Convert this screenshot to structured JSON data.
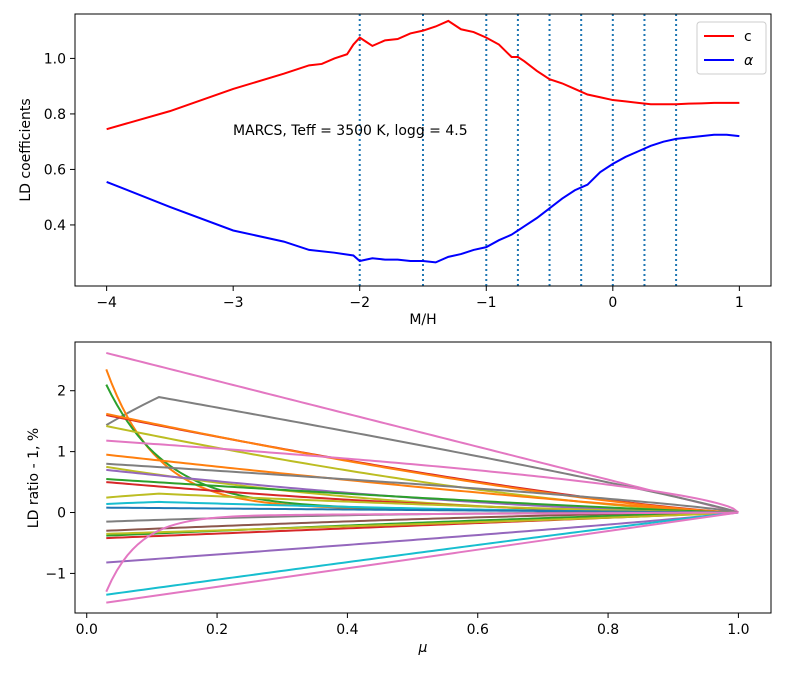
{
  "chart_data": [
    {
      "type": "line",
      "xlabel": "M/H",
      "ylabel": "LD coefficients",
      "xlim": [
        -4.25,
        1.25
      ],
      "ylim": [
        0.18,
        1.16
      ],
      "xticks": [
        -4,
        -3,
        -2,
        -1,
        0,
        1
      ],
      "xtick_labels": [
        "−4",
        "−3",
        "−2",
        "−1",
        "0",
        "1"
      ],
      "yticks": [
        0.4,
        0.6,
        0.8,
        1.0
      ],
      "ytick_labels": [
        "0.4",
        "0.6",
        "0.8",
        "1.0"
      ],
      "annotation": "MARCS, Teff = 3500 K, logg = 4.5",
      "vlines": [
        -2,
        -1.5,
        -1,
        -0.75,
        -0.5,
        -0.25,
        0,
        0.25,
        0.5
      ],
      "vline_color": "#1f77b4",
      "legend_position": "top-right",
      "series": [
        {
          "name": "c",
          "color": "#ff0000",
          "x": [
            -4,
            -3.5,
            -3,
            -2.6,
            -2.4,
            -2.3,
            -2.2,
            -2.1,
            -2.05,
            -2,
            -1.95,
            -1.9,
            -1.85,
            -1.8,
            -1.7,
            -1.6,
            -1.5,
            -1.4,
            -1.3,
            -1.2,
            -1.1,
            -1,
            -0.9,
            -0.8,
            -0.75,
            -0.7,
            -0.6,
            -0.5,
            -0.4,
            -0.3,
            -0.2,
            -0.1,
            0,
            0.1,
            0.2,
            0.3,
            0.4,
            0.5,
            0.6,
            0.7,
            0.8,
            0.9,
            1
          ],
          "y": [
            0.745,
            0.81,
            0.89,
            0.945,
            0.975,
            0.98,
            1.0,
            1.015,
            1.05,
            1.075,
            1.06,
            1.045,
            1.055,
            1.065,
            1.07,
            1.09,
            1.1,
            1.115,
            1.135,
            1.105,
            1.095,
            1.075,
            1.05,
            1.005,
            1.005,
            0.99,
            0.955,
            0.925,
            0.91,
            0.89,
            0.87,
            0.86,
            0.85,
            0.845,
            0.84,
            0.835,
            0.835,
            0.835,
            0.837,
            0.838,
            0.84,
            0.84,
            0.84
          ]
        },
        {
          "name": "α",
          "color": "#0000ff",
          "x": [
            -4,
            -3.5,
            -3,
            -2.6,
            -2.4,
            -2.2,
            -2.05,
            -2,
            -1.95,
            -1.9,
            -1.8,
            -1.7,
            -1.6,
            -1.5,
            -1.4,
            -1.3,
            -1.2,
            -1.1,
            -1,
            -0.9,
            -0.8,
            -0.75,
            -0.7,
            -0.6,
            -0.5,
            -0.4,
            -0.3,
            -0.25,
            -0.2,
            -0.1,
            0,
            0.1,
            0.2,
            0.3,
            0.4,
            0.5,
            0.6,
            0.7,
            0.8,
            0.9,
            1
          ],
          "y": [
            0.555,
            0.465,
            0.38,
            0.34,
            0.31,
            0.3,
            0.29,
            0.27,
            0.275,
            0.28,
            0.275,
            0.275,
            0.27,
            0.27,
            0.265,
            0.285,
            0.295,
            0.31,
            0.32,
            0.345,
            0.365,
            0.38,
            0.395,
            0.425,
            0.46,
            0.495,
            0.525,
            0.535,
            0.545,
            0.59,
            0.62,
            0.645,
            0.665,
            0.685,
            0.7,
            0.71,
            0.715,
            0.72,
            0.725,
            0.725,
            0.72
          ]
        }
      ]
    },
    {
      "type": "line",
      "xlabel": "μ",
      "ylabel": "LD ratio - 1, %",
      "xlim": [
        -0.018,
        1.05
      ],
      "ylim": [
        -1.65,
        2.8
      ],
      "xticks": [
        0,
        0.2,
        0.4,
        0.6,
        0.8,
        1.0
      ],
      "xtick_labels": [
        "0.0",
        "0.2",
        "0.4",
        "0.6",
        "0.8",
        "1.0"
      ],
      "yticks": [
        -1,
        0,
        1,
        2
      ],
      "ytick_labels": [
        "−1",
        "0",
        "1",
        "2"
      ],
      "x_range": [
        0.03,
        1.0
      ],
      "series": [
        {
          "color": "#e377c2",
          "start": 2.62,
          "shape": "decay",
          "k": 1.0
        },
        {
          "color": "#7f7f7f",
          "start": 2.05,
          "shape": "hump",
          "k": 0.9
        },
        {
          "color": "#ff7f0e",
          "start": 2.25,
          "shape": "fast",
          "k": 12
        },
        {
          "color": "#2ca02c",
          "start": 2.0,
          "shape": "fast",
          "k": 10
        },
        {
          "color": "#d62728",
          "start": 1.6,
          "shape": "decay",
          "k": 1.3
        },
        {
          "color": "#ff7f0e",
          "start": 1.62,
          "shape": "decay",
          "k": 1.35
        },
        {
          "color": "#bcbd22",
          "start": 1.42,
          "shape": "decay",
          "k": 1.5
        },
        {
          "color": "#e377c2",
          "start": 1.18,
          "shape": "decay",
          "k": 0.6
        },
        {
          "color": "#ff7f0e",
          "start": 0.95,
          "shape": "decay",
          "k": 1.2
        },
        {
          "color": "#7f7f7f",
          "start": 0.8,
          "shape": "decay",
          "k": 0.8
        },
        {
          "color": "#bcbd22",
          "start": 0.75,
          "shape": "decay",
          "k": 2.2
        },
        {
          "color": "#9467bd",
          "start": 0.7,
          "shape": "decay",
          "k": 1.6
        },
        {
          "color": "#2ca02c",
          "start": 0.55,
          "shape": "decay",
          "k": 1.2
        },
        {
          "color": "#d62728",
          "start": 0.5,
          "shape": "decay",
          "k": 1.8
        },
        {
          "color": "#bcbd22",
          "start": 0.35,
          "shape": "hump",
          "k": 1.4
        },
        {
          "color": "#17becf",
          "start": 0.2,
          "shape": "hump",
          "k": 1.6
        },
        {
          "color": "#1f77b4",
          "start": 0.08,
          "shape": "decay",
          "k": 1.0
        },
        {
          "color": "#7f7f7f",
          "start": -0.15,
          "shape": "decay",
          "k": 2.5
        },
        {
          "color": "#8c564b",
          "start": -0.3,
          "shape": "decay",
          "k": 1.5
        },
        {
          "color": "#2ca02c",
          "start": -0.38,
          "shape": "decay",
          "k": 1.2
        },
        {
          "color": "#d62728",
          "start": -0.42,
          "shape": "decay",
          "k": 1.0
        },
        {
          "color": "#bcbd22",
          "start": -0.35,
          "shape": "decay",
          "k": 0.9
        },
        {
          "color": "#9467bd",
          "start": -0.82,
          "shape": "decay",
          "k": 0.9
        },
        {
          "color": "#17becf",
          "start": -1.35,
          "shape": "decay",
          "k": 1.05
        },
        {
          "color": "#e377c2",
          "start": -1.48,
          "shape": "decay",
          "k": 1.0
        },
        {
          "color": "#e377c2",
          "start": -1.3,
          "shape": "rise",
          "k": 20
        }
      ]
    }
  ]
}
